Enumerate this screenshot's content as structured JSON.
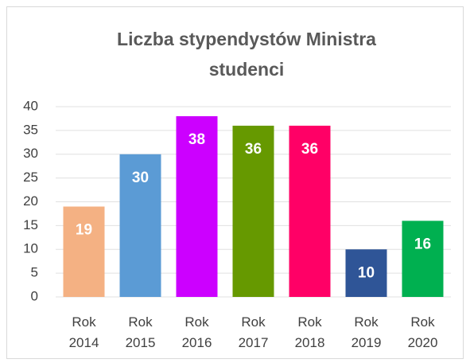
{
  "chart_data": {
    "type": "bar",
    "title": "Liczba stypendystów Ministra studenci",
    "categories": [
      "Rok 2014",
      "Rok 2015",
      "Rok 2016",
      "Rok 2017",
      "Rok 2018",
      "Rok 2019",
      "Rok 2020"
    ],
    "values": [
      19,
      30,
      38,
      36,
      36,
      10,
      16
    ],
    "colors": [
      "#f4b183",
      "#5b9bd5",
      "#cc00ff",
      "#669900",
      "#ff0066",
      "#2f5597",
      "#00b050"
    ],
    "ylim": [
      0,
      40
    ],
    "yticks": [
      0,
      5,
      10,
      15,
      20,
      25,
      30,
      35,
      40
    ],
    "grid": true
  }
}
